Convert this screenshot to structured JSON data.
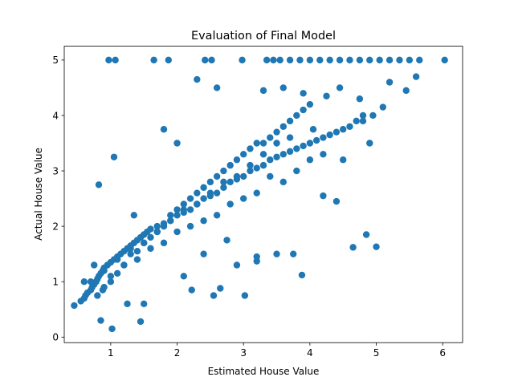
{
  "chart_data": {
    "type": "scatter",
    "title": "Evaluation of Final Model",
    "xlabel": "Estimated House Value",
    "ylabel": "Actual House Value",
    "xlim": [
      0.3,
      6.3
    ],
    "ylim": [
      -0.1,
      5.25
    ],
    "xticks": [
      1,
      2,
      3,
      4,
      5,
      6
    ],
    "yticks": [
      0,
      1,
      2,
      3,
      4,
      5
    ],
    "grid": false,
    "marker_color": "#1f77b4",
    "x": [
      0.45,
      0.55,
      0.6,
      0.62,
      0.65,
      0.7,
      0.72,
      0.75,
      0.78,
      0.8,
      0.82,
      0.85,
      0.88,
      0.9,
      0.95,
      1.0,
      1.05,
      1.1,
      1.15,
      1.2,
      1.25,
      1.3,
      1.35,
      1.4,
      1.45,
      1.5,
      1.55,
      1.6,
      1.7,
      1.8,
      1.9,
      2.0,
      2.1,
      2.2,
      2.3,
      2.4,
      2.5,
      2.6,
      2.7,
      2.8,
      2.9,
      3.0,
      3.1,
      3.2,
      3.3,
      3.4,
      3.5,
      3.6,
      3.7,
      3.8,
      3.9,
      4.0,
      4.1,
      4.2,
      4.3,
      4.4,
      4.5,
      4.6,
      4.7,
      4.8,
      0.8,
      0.9,
      1.0,
      1.1,
      1.2,
      1.3,
      1.4,
      1.5,
      1.6,
      1.7,
      1.8,
      1.9,
      2.0,
      2.1,
      2.2,
      2.3,
      2.4,
      2.5,
      2.6,
      2.7,
      2.8,
      2.9,
      3.0,
      3.1,
      3.2,
      3.3,
      3.4,
      3.5,
      3.6,
      3.7,
      3.8,
      3.9,
      4.0,
      1.0,
      1.2,
      1.4,
      1.6,
      1.8,
      2.0,
      2.2,
      2.4,
      2.6,
      2.8,
      3.0,
      3.2,
      3.4,
      3.6,
      3.8,
      4.0,
      4.2,
      0.7,
      0.9,
      1.1,
      1.3,
      1.5,
      1.7,
      1.9,
      2.1,
      2.3,
      2.5,
      2.7,
      2.9,
      3.1,
      3.3,
      3.5,
      3.7,
      0.97,
      1.07,
      1.65,
      1.87,
      2.42,
      2.52,
      2.98,
      3.35,
      3.45,
      3.55,
      3.7,
      3.85,
      4.0,
      4.15,
      4.3,
      4.45,
      4.6,
      4.75,
      4.9,
      5.05,
      5.2,
      5.35,
      5.5,
      5.65,
      6.03,
      0.85,
      1.02,
      1.25,
      0.82,
      1.05,
      2.3,
      1.8,
      2.0,
      2.6,
      3.3,
      3.6,
      3.9,
      4.25,
      4.45,
      4.75,
      4.95,
      3.88,
      3.75,
      3.2,
      3.02,
      2.55,
      2.65,
      1.45,
      1.5,
      2.75,
      2.4,
      2.1,
      2.22,
      4.2,
      4.5,
      4.9,
      5.2,
      5.45,
      5.6,
      5.1,
      4.8,
      4.4,
      4.65,
      4.05,
      4.85,
      5.0,
      2.9,
      3.2,
      3.5,
      0.6,
      0.75,
      0.88,
      1.35
    ],
    "y": [
      0.57,
      0.65,
      0.7,
      0.75,
      0.8,
      0.85,
      0.9,
      0.95,
      1.0,
      1.05,
      1.1,
      1.15,
      1.2,
      1.25,
      1.3,
      1.35,
      1.4,
      1.45,
      1.5,
      1.55,
      1.6,
      1.65,
      1.7,
      1.75,
      1.8,
      1.85,
      1.9,
      1.95,
      2.0,
      2.05,
      2.1,
      2.2,
      2.25,
      2.3,
      2.4,
      2.5,
      2.55,
      2.6,
      2.7,
      2.8,
      2.85,
      2.9,
      3.0,
      3.05,
      3.1,
      3.2,
      3.25,
      3.3,
      3.35,
      3.4,
      3.45,
      3.5,
      3.55,
      3.6,
      3.65,
      3.7,
      3.75,
      3.8,
      3.9,
      4.0,
      0.75,
      0.9,
      1.0,
      1.15,
      1.3,
      1.5,
      1.55,
      1.7,
      1.8,
      1.9,
      2.0,
      2.2,
      2.3,
      2.4,
      2.5,
      2.6,
      2.7,
      2.8,
      2.9,
      3.0,
      3.1,
      3.2,
      3.3,
      3.4,
      3.5,
      3.5,
      3.6,
      3.7,
      3.8,
      3.9,
      4.0,
      4.1,
      4.2,
      1.1,
      1.3,
      1.4,
      1.6,
      1.7,
      1.9,
      2.0,
      2.1,
      2.2,
      2.4,
      2.5,
      2.6,
      2.9,
      2.8,
      3.0,
      3.2,
      3.3,
      1.0,
      1.2,
      1.4,
      1.6,
      1.7,
      1.9,
      2.1,
      2.3,
      2.4,
      2.6,
      2.8,
      2.9,
      3.1,
      3.3,
      3.5,
      3.6,
      5.0,
      5.0,
      5.0,
      5.0,
      5.0,
      5.0,
      5.0,
      5.0,
      5.0,
      5.0,
      5.0,
      5.0,
      5.0,
      5.0,
      5.0,
      5.0,
      5.0,
      5.0,
      5.0,
      5.0,
      5.0,
      5.0,
      5.0,
      5.0,
      5.0,
      0.3,
      0.15,
      0.6,
      2.75,
      3.25,
      4.65,
      3.75,
      3.5,
      4.5,
      4.45,
      4.5,
      4.4,
      4.35,
      4.5,
      4.3,
      4.0,
      1.12,
      1.5,
      1.37,
      0.75,
      0.75,
      0.88,
      0.28,
      0.6,
      1.75,
      1.5,
      1.1,
      0.85,
      2.55,
      3.2,
      3.5,
      4.6,
      4.45,
      4.7,
      4.15,
      3.9,
      2.45,
      1.62,
      3.75,
      1.85,
      1.63,
      1.3,
      1.45,
      1.5,
      1.0,
      1.3,
      0.85,
      2.2
    ]
  }
}
